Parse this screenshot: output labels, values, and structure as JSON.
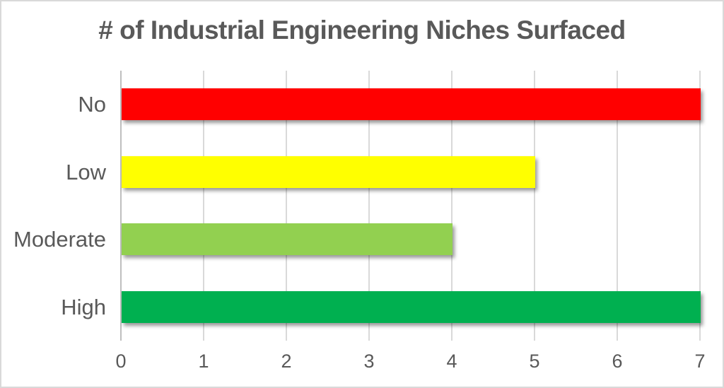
{
  "chart_data": {
    "type": "bar",
    "orientation": "horizontal",
    "title": "# of Industrial Engineering Niches Surfaced",
    "categories": [
      "No",
      "Low",
      "Moderate",
      "High"
    ],
    "values": [
      7,
      5,
      4,
      7
    ],
    "bar_colors": [
      "#ff0000",
      "#ffff00",
      "#92d050",
      "#00b050"
    ],
    "xlabel": "",
    "ylabel": "",
    "xlim": [
      0,
      7
    ],
    "x_ticks": [
      0,
      1,
      2,
      3,
      4,
      5,
      6,
      7
    ],
    "grid": "vertical-major-on",
    "legend": "none",
    "colors": {
      "title_text": "#595959",
      "axis_text": "#595959",
      "category_text": "#595959",
      "gridline": "#d9d9d9",
      "axis_line": "#bfbfbf",
      "background": "#ffffff",
      "frame_border": "#d9d9d9"
    }
  }
}
